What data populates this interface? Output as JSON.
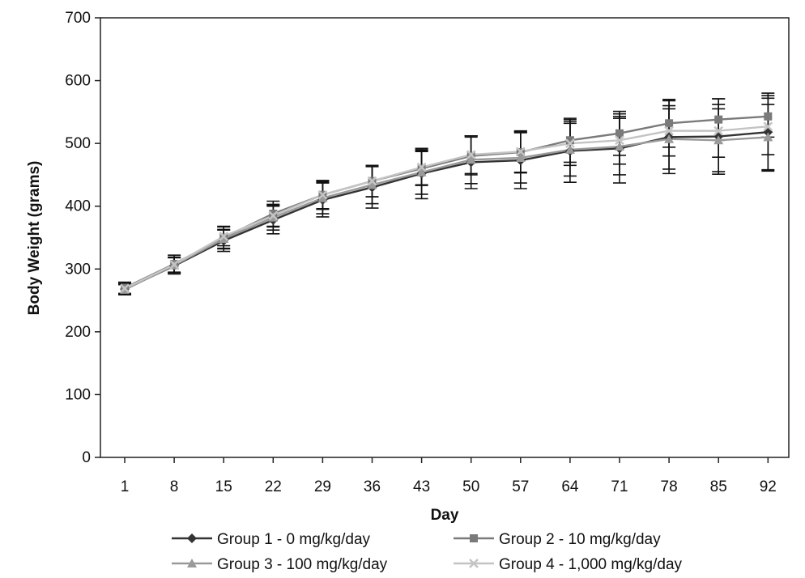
{
  "chart_data": {
    "type": "line",
    "title": "",
    "xlabel": "Day",
    "ylabel": "Body Weight (grams)",
    "categories": [
      "1",
      "8",
      "15",
      "22",
      "29",
      "36",
      "43",
      "50",
      "57",
      "64",
      "71",
      "78",
      "85",
      "92"
    ],
    "ylim": [
      0,
      700
    ],
    "yticks": [
      0,
      100,
      200,
      300,
      400,
      500,
      600,
      700
    ],
    "grid": false,
    "error_bars": true,
    "legend_position": "bottom",
    "series": [
      {
        "name": "Group 1 - 0 mg/kg/day",
        "marker": "diamond",
        "color": "#333333",
        "values": [
          268,
          305,
          345,
          378,
          410,
          430,
          452,
          470,
          473,
          488,
          492,
          510,
          511,
          518
        ],
        "errors": [
          9,
          13,
          17,
          22,
          27,
          33,
          40,
          42,
          45,
          50,
          55,
          58,
          60,
          62
        ]
      },
      {
        "name": "Group 2 - 10 mg/kg/day",
        "marker": "square",
        "color": "#7a7a7a",
        "values": [
          270,
          308,
          350,
          388,
          418,
          440,
          460,
          480,
          486,
          505,
          516,
          532,
          538,
          543
        ],
        "errors": [
          9,
          14,
          18,
          20,
          23,
          25,
          27,
          30,
          33,
          35,
          35,
          38,
          33,
          33
        ]
      },
      {
        "name": "Group 3 - 100 mg/kg/day",
        "marker": "triangle",
        "color": "#9a9a9a",
        "values": [
          267,
          306,
          348,
          382,
          413,
          434,
          454,
          474,
          477,
          490,
          495,
          507,
          505,
          510
        ],
        "errors": [
          8,
          12,
          15,
          20,
          25,
          30,
          35,
          38,
          40,
          42,
          45,
          48,
          50,
          52
        ]
      },
      {
        "name": "Group 4 - 1,000 mg/kg/day",
        "marker": "x",
        "color": "#c4c4c4",
        "values": [
          269,
          307,
          352,
          385,
          418,
          440,
          462,
          482,
          487,
          500,
          505,
          520,
          520,
          527
        ],
        "errors": [
          8,
          12,
          15,
          18,
          22,
          25,
          28,
          30,
          33,
          35,
          38,
          40,
          42,
          45
        ]
      }
    ]
  }
}
